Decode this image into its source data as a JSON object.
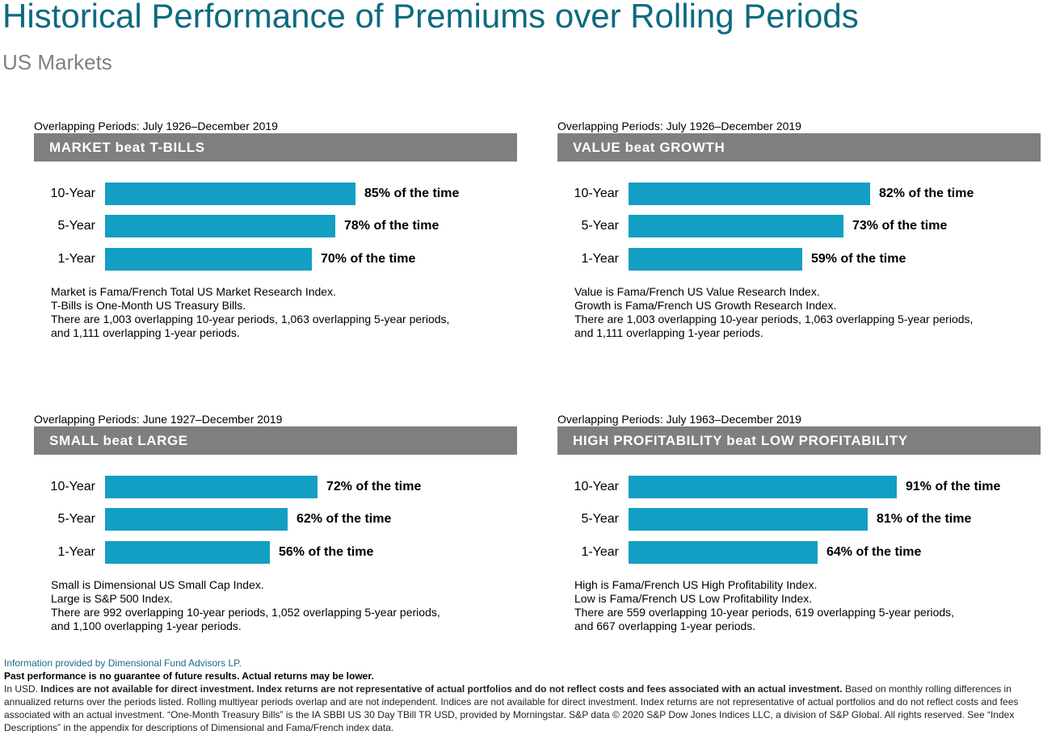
{
  "header": {
    "title": "Historical Performance of Premiums over Rolling Periods",
    "subtitle": "US Markets"
  },
  "colors": {
    "bar": "#139ec3",
    "banner": "#7f7f7f",
    "title": "#0d6a80"
  },
  "chart_data": [
    {
      "type": "bar",
      "orientation": "horizontal",
      "title": "MARKET beat T-BILLS",
      "subtitle": "Overlapping Periods: July 1926–December 2019",
      "categories": [
        "10-Year",
        "5-Year",
        "1-Year"
      ],
      "values": [
        85,
        78,
        70
      ],
      "labels": [
        "85% of the time",
        "78% of the time",
        "70% of the time"
      ],
      "notes": [
        "Market is Fama/French Total US Market Research Index.",
        "T-Bills is One-Month US Treasury Bills.",
        "There are 1,003 overlapping 10-year periods, 1,063 overlapping 5-year periods,",
        "and 1,111 overlapping 1-year periods."
      ]
    },
    {
      "type": "bar",
      "orientation": "horizontal",
      "title": "VALUE beat GROWTH",
      "subtitle": "Overlapping Periods: July 1926–December 2019",
      "categories": [
        "10-Year",
        "5-Year",
        "1-Year"
      ],
      "values": [
        82,
        73,
        59
      ],
      "labels": [
        "82% of the time",
        "73% of the time",
        "59% of the time"
      ],
      "notes": [
        "Value is Fama/French US Value Research Index.",
        "Growth is Fama/French US Growth Research Index.",
        "There are 1,003 overlapping 10-year periods, 1,063 overlapping 5-year periods,",
        "and 1,111 overlapping 1-year periods."
      ]
    },
    {
      "type": "bar",
      "orientation": "horizontal",
      "title": "SMALL beat LARGE",
      "subtitle": "Overlapping Periods: June 1927–December 2019",
      "categories": [
        "10-Year",
        "5-Year",
        "1-Year"
      ],
      "values": [
        72,
        62,
        56
      ],
      "labels": [
        "72% of the time",
        "62% of the time",
        "56% of the time"
      ],
      "notes": [
        "Small is Dimensional US Small Cap Index.",
        "Large is S&P 500 Index.",
        "There are 992 overlapping 10-year periods, 1,052 overlapping 5-year periods,",
        "and 1,100 overlapping 1-year periods."
      ]
    },
    {
      "type": "bar",
      "orientation": "horizontal",
      "title": "HIGH PROFITABILITY beat LOW PROFITABILITY",
      "subtitle": "Overlapping Periods: July 1963–December 2019",
      "categories": [
        "10-Year",
        "5-Year",
        "1-Year"
      ],
      "values": [
        91,
        81,
        64
      ],
      "labels": [
        "91% of the time",
        "81% of the time",
        "64% of the time"
      ],
      "notes": [
        "High is Fama/French US High Profitability Index.",
        "Low is Fama/French US Low Profitability Index.",
        "There are 559 overlapping 10-year periods, 619 overlapping 5-year periods,",
        "and 667 overlapping 1-year periods."
      ]
    }
  ],
  "footer": {
    "source": "Information provided by Dimensional Fund Advisors LP.",
    "disclaimer": "Past performance is no guarantee of future results. Actual returns may be lower.",
    "legal_prefix": "In USD. ",
    "legal_bold": "Indices are not available for direct investment. Index returns are not representative of actual portfolios and do not reflect costs and fees associated with an actual investment.",
    "legal_rest": " Based on monthly rolling differences in annualized returns over the periods listed. Rolling multiyear periods overlap and are not independent. Indices are not available for direct investment. Index returns are not representative of actual portfolios and do not reflect costs and fees associated with an actual investment. “One-Month Treasury Bills” is the IA SBBI US 30 Day TBill TR USD, provided by Morningstar. S&P data © 2020 S&P Dow Jones Indices LLC, a division of S&P Global. All rights reserved. See “Index Descriptions” in the appendix for descriptions of Dimensional and Fama/French index data."
  }
}
